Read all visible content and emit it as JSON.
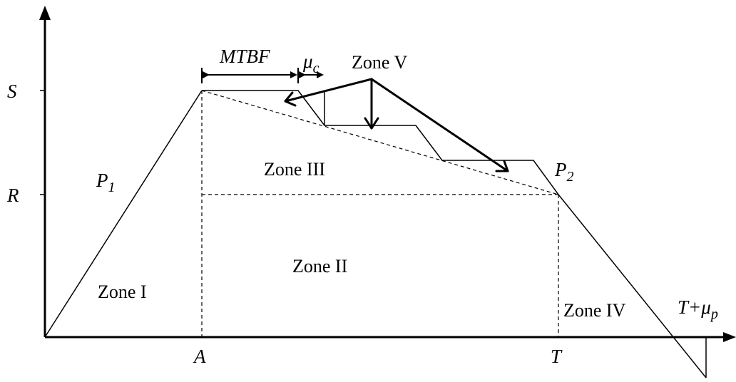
{
  "axis_labels": {
    "s": "S",
    "r": "R",
    "a": "A",
    "t": "T",
    "t_mu_p_base": "T+",
    "t_mu_p_mu": "μ",
    "t_mu_p_sub": "p"
  },
  "points": {
    "p1_base": "P",
    "p1_sub": "1",
    "p2_base": "P",
    "p2_sub": "2"
  },
  "intervals": {
    "mtbf": "MTBF",
    "mu_c_base": "μ",
    "mu_c_sub": "c"
  },
  "zones": {
    "zone1": "Zone I",
    "zone2": "Zone II",
    "zone3": "Zone III",
    "zone4": "Zone IV",
    "zone5": "Zone V"
  },
  "colors": {
    "stroke": "#000000",
    "background": "#ffffff"
  }
}
